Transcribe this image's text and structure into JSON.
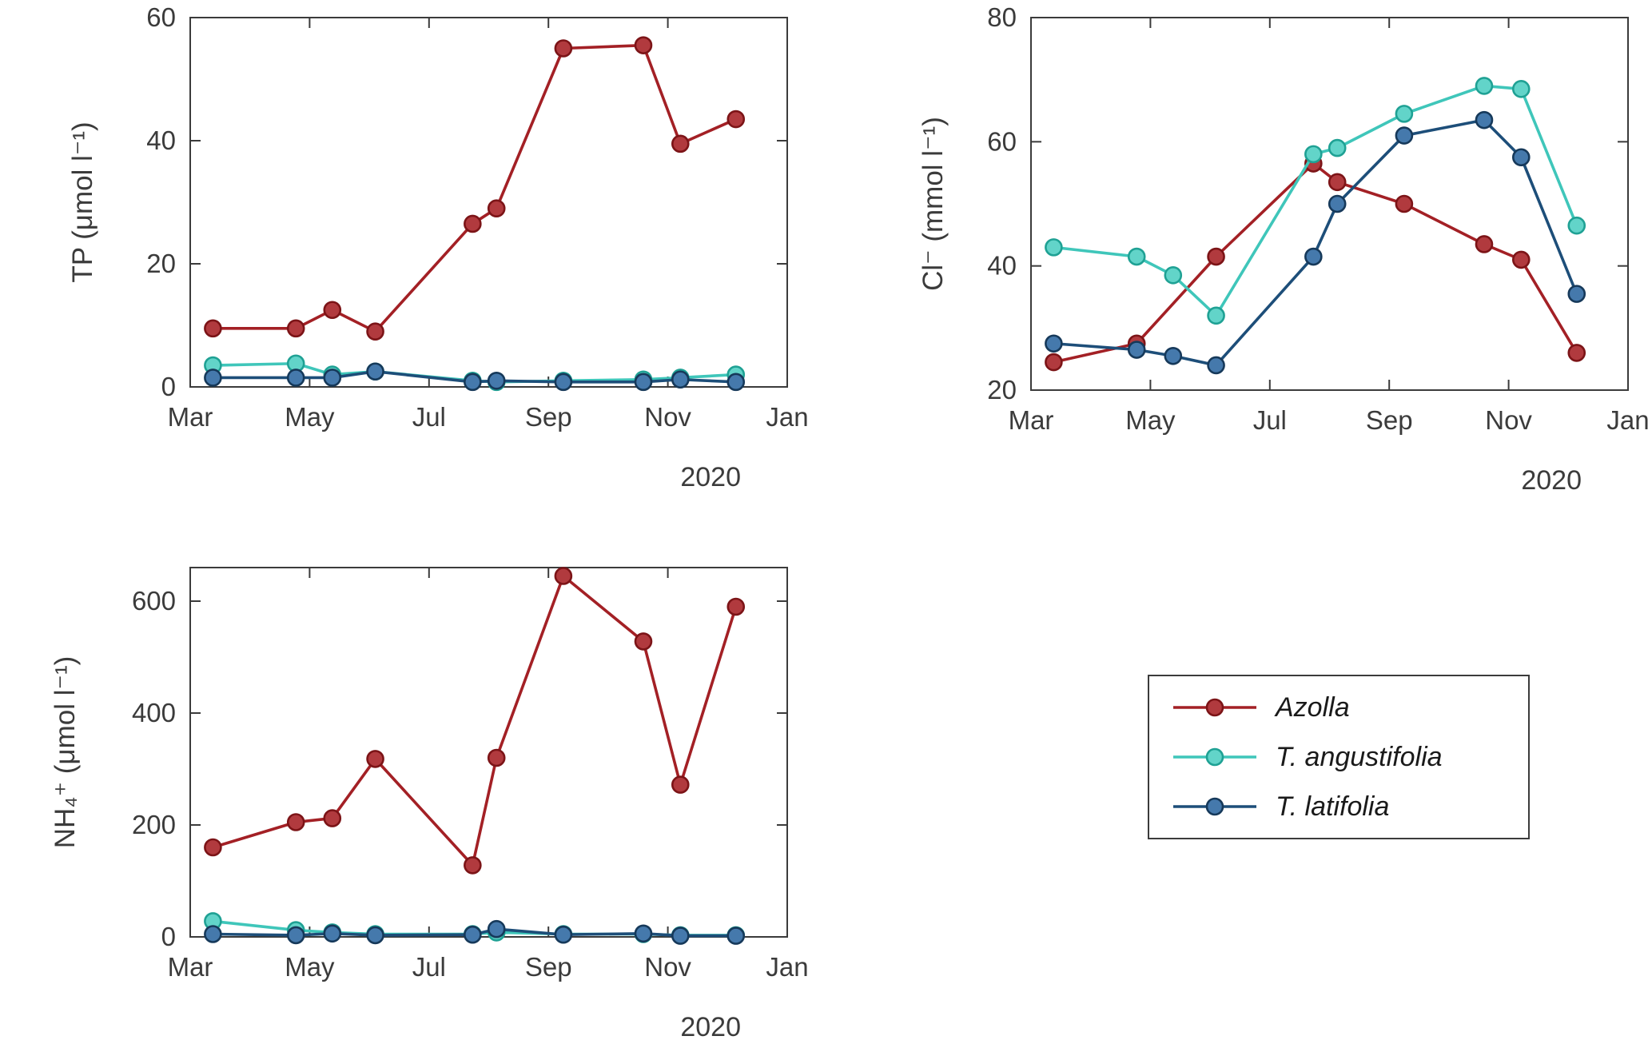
{
  "figure": {
    "background": "#ffffff",
    "axis_color": "#3b3b3b"
  },
  "legend": {
    "items": [
      {
        "label": "Azolla"
      },
      {
        "label": "T. angustifolia"
      },
      {
        "label": "T. latifolia"
      }
    ]
  },
  "chart_data": [
    {
      "id": "tp",
      "type": "line",
      "title": "",
      "xlabel": "",
      "ylabel": "TP (μmol l⁻¹)",
      "year_label": "2020",
      "xlim": [
        3,
        13
      ],
      "ylim": [
        0,
        60
      ],
      "xticks": [
        3,
        5,
        7,
        9,
        11,
        13
      ],
      "xticklabels": [
        "Mar",
        "May",
        "Jul",
        "Sep",
        "Nov",
        "Jan"
      ],
      "yticks": [
        0,
        20,
        40,
        60
      ],
      "x_months": [
        3.38,
        4.77,
        5.38,
        6.1,
        7.73,
        8.13,
        9.25,
        10.59,
        11.21,
        12.14
      ],
      "series": [
        {
          "name": "Azolla",
          "line_color": "#a32025",
          "marker_fill": "#b13a3e",
          "marker_edge": "#7c1417",
          "values": [
            9.5,
            9.5,
            12.5,
            9,
            26.5,
            29,
            55,
            55.5,
            39.5,
            43.5
          ]
        },
        {
          "name": "T. angustifolia",
          "line_color": "#3fc6ba",
          "marker_fill": "#62d4c9",
          "marker_edge": "#1fa194",
          "values": [
            3.5,
            3.8,
            2,
            2.5,
            1,
            0.8,
            1,
            1.2,
            1.5,
            2
          ]
        },
        {
          "name": "T. latifolia",
          "line_color": "#1d4e79",
          "marker_fill": "#4579ac",
          "marker_edge": "#16395a",
          "values": [
            1.5,
            1.5,
            1.5,
            2.5,
            0.8,
            1,
            0.8,
            0.8,
            1.2,
            0.8
          ]
        }
      ]
    },
    {
      "id": "cl",
      "type": "line",
      "title": "",
      "xlabel": "",
      "ylabel": "Cl⁻ (mmol l⁻¹)",
      "year_label": "2020",
      "xlim": [
        3,
        13
      ],
      "ylim": [
        20,
        80
      ],
      "xticks": [
        3,
        5,
        7,
        9,
        11,
        13
      ],
      "xticklabels": [
        "Mar",
        "May",
        "Jul",
        "Sep",
        "Nov",
        "Jan"
      ],
      "yticks": [
        20,
        40,
        60,
        80
      ],
      "x_months": [
        3.38,
        4.77,
        5.38,
        6.1,
        7.73,
        8.13,
        9.25,
        10.59,
        11.21,
        12.14
      ],
      "series": [
        {
          "name": "Azolla",
          "line_color": "#a32025",
          "marker_fill": "#b13a3e",
          "marker_edge": "#7c1417",
          "values": [
            24.5,
            27.5,
            null,
            41.5,
            56.5,
            53.5,
            50,
            43.5,
            41,
            26
          ]
        },
        {
          "name": "T. angustifolia",
          "line_color": "#3fc6ba",
          "marker_fill": "#62d4c9",
          "marker_edge": "#1fa194",
          "values": [
            43,
            41.5,
            38.5,
            32,
            58,
            59,
            64.5,
            69,
            68.5,
            46.5
          ]
        },
        {
          "name": "T. latifolia",
          "line_color": "#1d4e79",
          "marker_fill": "#4579ac",
          "marker_edge": "#16395a",
          "values": [
            27.5,
            26.5,
            25.5,
            24,
            41.5,
            50,
            61,
            63.5,
            57.5,
            35.5
          ]
        }
      ]
    },
    {
      "id": "nh4",
      "type": "line",
      "title": "",
      "xlabel": "",
      "ylabel": "NH₄⁺ (μmol l⁻¹)",
      "year_label": "2020",
      "xlim": [
        3,
        13
      ],
      "ylim": [
        0,
        660
      ],
      "xticks": [
        3,
        5,
        7,
        9,
        11,
        13
      ],
      "xticklabels": [
        "Mar",
        "May",
        "Jul",
        "Sep",
        "Nov",
        "Jan"
      ],
      "yticks": [
        0,
        200,
        400,
        600
      ],
      "x_months": [
        3.38,
        4.77,
        5.38,
        6.1,
        7.73,
        8.13,
        9.25,
        10.59,
        11.21,
        12.14
      ],
      "series": [
        {
          "name": "Azolla",
          "line_color": "#a32025",
          "marker_fill": "#b13a3e",
          "marker_edge": "#7c1417",
          "values": [
            160,
            205,
            212,
            318,
            128,
            320,
            645,
            528,
            272,
            590
          ]
        },
        {
          "name": "T. angustifolia",
          "line_color": "#3fc6ba",
          "marker_fill": "#62d4c9",
          "marker_edge": "#1fa194",
          "values": [
            28,
            12,
            8,
            5,
            5,
            8,
            5,
            5,
            3,
            3
          ]
        },
        {
          "name": "T. latifolia",
          "line_color": "#1d4e79",
          "marker_fill": "#4579ac",
          "marker_edge": "#16395a",
          "values": [
            5,
            3,
            6,
            3,
            4,
            14,
            4,
            6,
            2,
            2
          ]
        }
      ]
    }
  ]
}
